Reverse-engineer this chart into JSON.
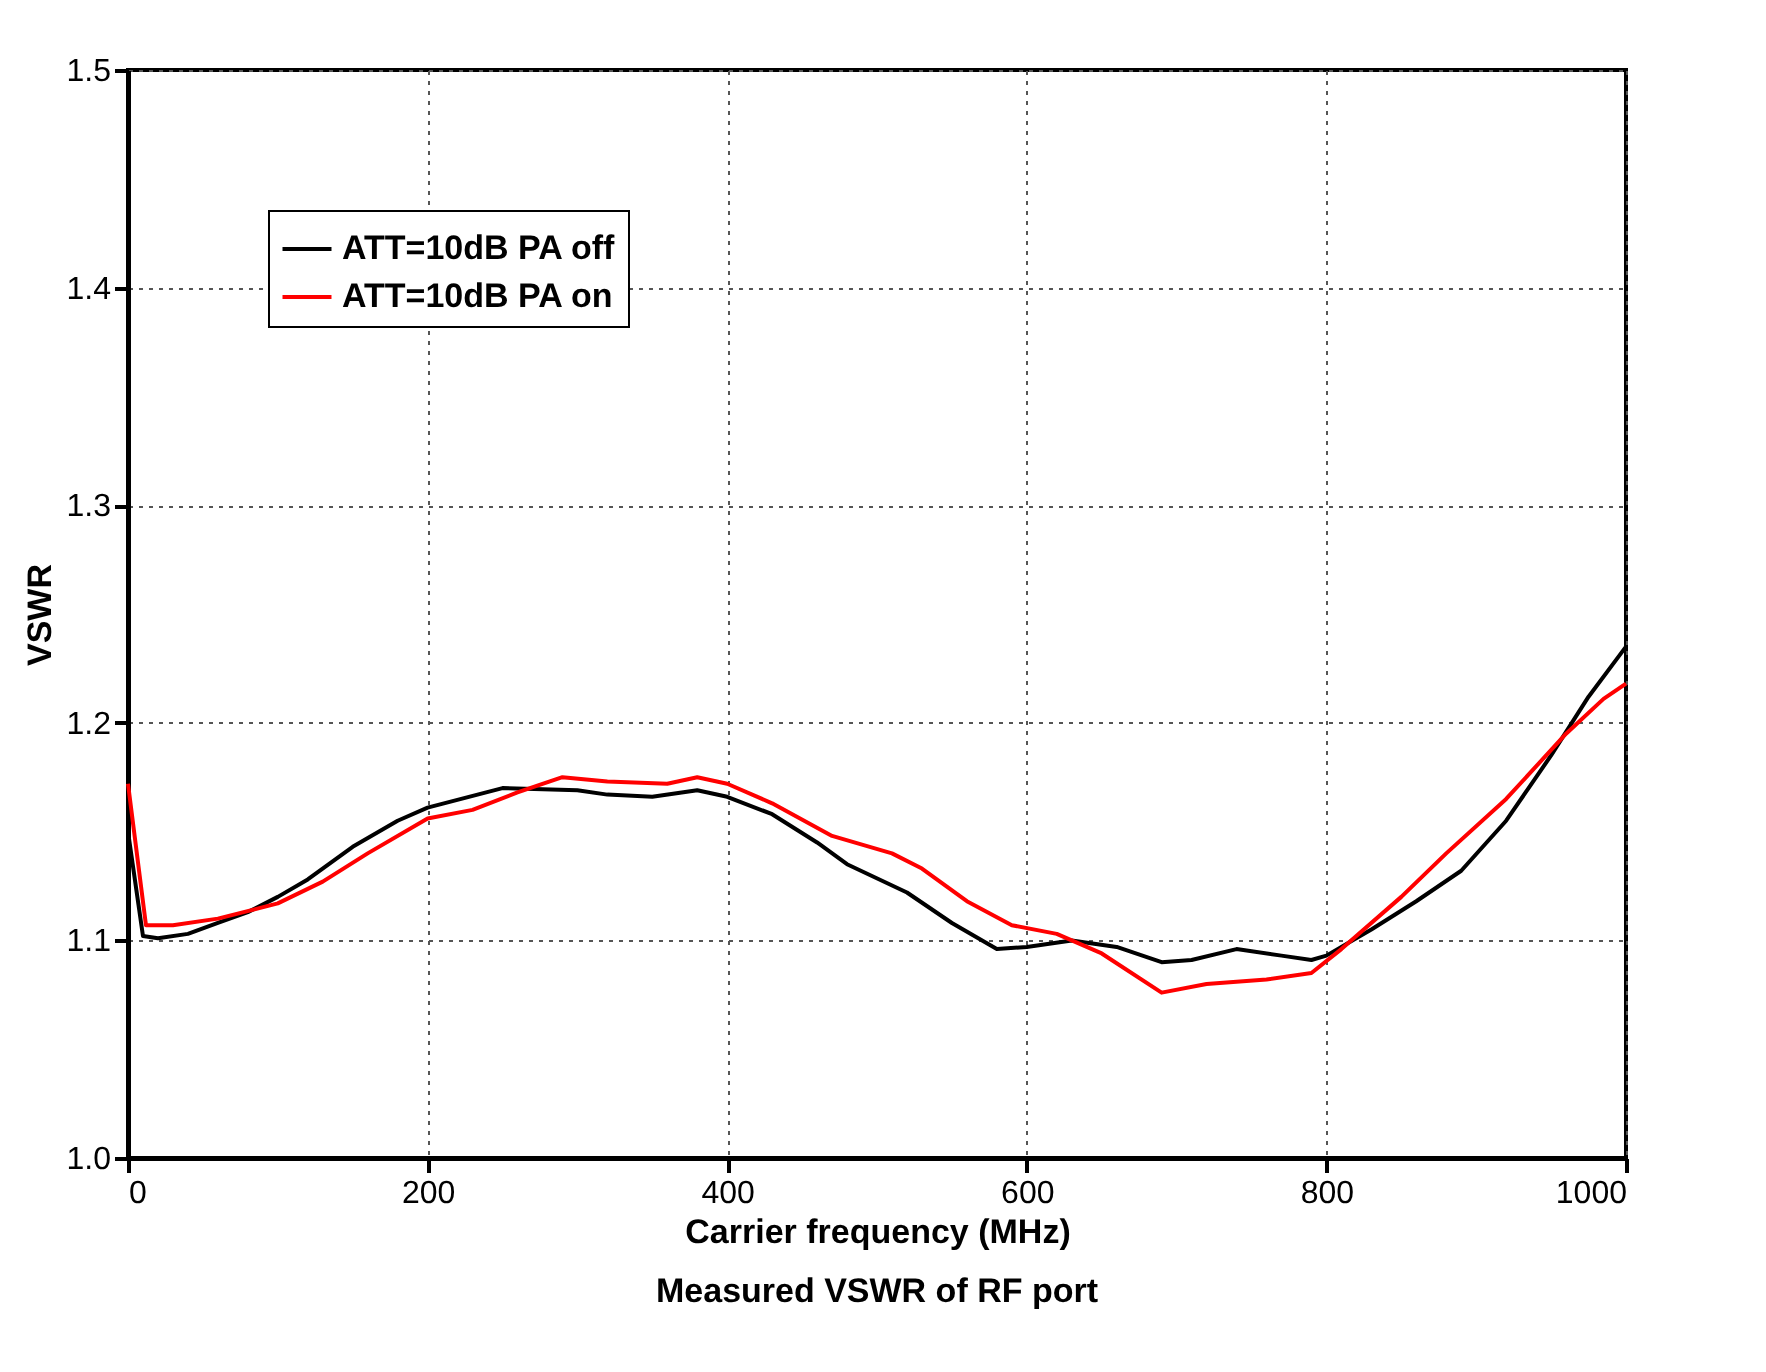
{
  "chart_data": {
    "type": "line",
    "xlabel": "Carrier frequency (MHz)",
    "ylabel": "VSWR",
    "annotations": [
      "Measured VSWR of RF port"
    ],
    "xlim": [
      0,
      1000
    ],
    "xticks": [
      0,
      200,
      400,
      600,
      800,
      1000
    ],
    "ylim": [
      1.0,
      1.5
    ],
    "yticks": [
      {
        "value": 1.0,
        "label": "1.0"
      },
      1.1,
      1.2,
      1.3,
      1.4,
      1.5
    ],
    "grid": true,
    "legend": "top left",
    "line_style": "solid",
    "marker": "none",
    "series": [
      {
        "name": "ATT=10dB PA off",
        "color": "#000000",
        "x": [
          0,
          10,
          20,
          40,
          60,
          80,
          100,
          120,
          150,
          180,
          200,
          250,
          300,
          320,
          350,
          380,
          400,
          430,
          460,
          480,
          520,
          550,
          580,
          600,
          630,
          660,
          690,
          710,
          740,
          770,
          790,
          800,
          830,
          860,
          890,
          920,
          950,
          975,
          1000
        ],
        "values": [
          1.15,
          1.102,
          1.101,
          1.103,
          1.108,
          1.113,
          1.12,
          1.128,
          1.143,
          1.155,
          1.161,
          1.17,
          1.169,
          1.167,
          1.166,
          1.169,
          1.166,
          1.158,
          1.145,
          1.135,
          1.122,
          1.108,
          1.096,
          1.097,
          1.1,
          1.097,
          1.09,
          1.091,
          1.096,
          1.093,
          1.091,
          1.093,
          1.105,
          1.118,
          1.132,
          1.155,
          1.185,
          1.212,
          1.235
        ]
      },
      {
        "name": "ATT=10dB PA on",
        "color": "#ff0000",
        "x": [
          0,
          12,
          30,
          60,
          100,
          130,
          160,
          200,
          230,
          260,
          290,
          320,
          360,
          380,
          400,
          430,
          470,
          510,
          530,
          560,
          590,
          620,
          650,
          690,
          720,
          760,
          790,
          810,
          850,
          880,
          920,
          960,
          985,
          1000
        ],
        "values": [
          1.172,
          1.107,
          1.107,
          1.11,
          1.117,
          1.127,
          1.14,
          1.156,
          1.16,
          1.168,
          1.175,
          1.173,
          1.172,
          1.175,
          1.172,
          1.163,
          1.148,
          1.14,
          1.133,
          1.118,
          1.107,
          1.103,
          1.094,
          1.076,
          1.08,
          1.082,
          1.085,
          1.096,
          1.12,
          1.14,
          1.165,
          1.195,
          1.211,
          1.218
        ]
      }
    ]
  }
}
